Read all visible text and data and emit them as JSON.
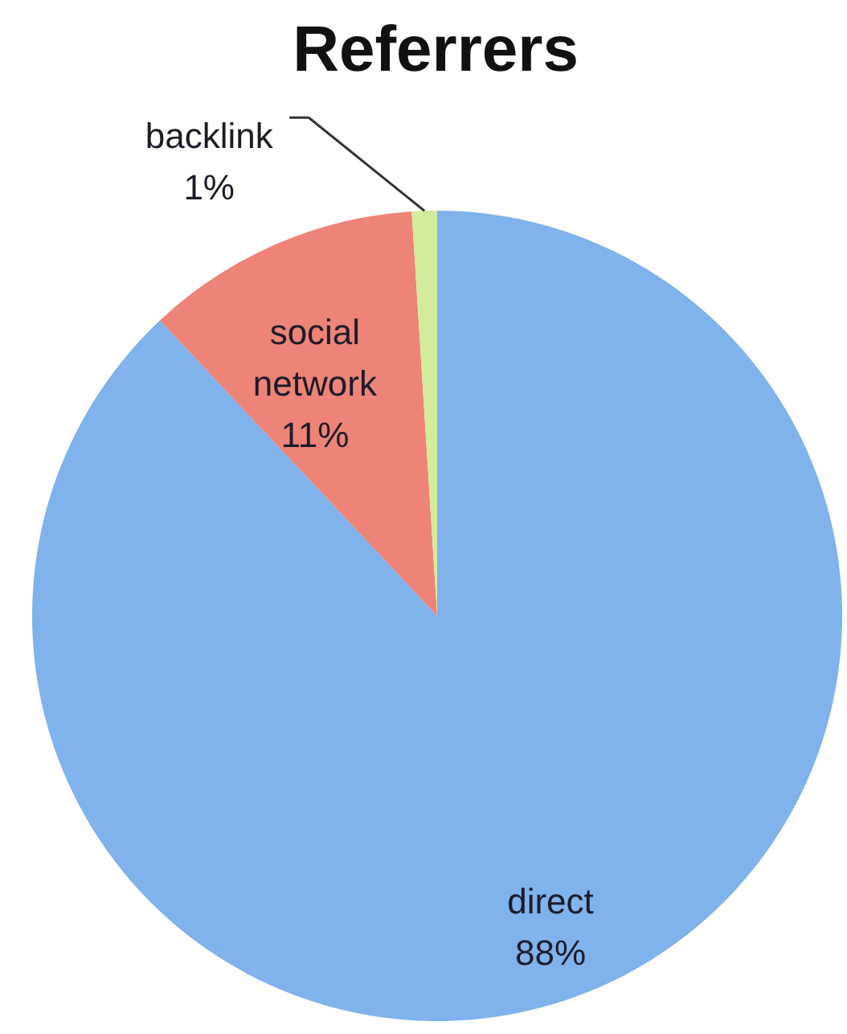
{
  "chart_data": {
    "type": "pie",
    "title": "Referrers",
    "categories": [
      "direct",
      "social network",
      "backlink"
    ],
    "values": [
      88,
      11,
      1
    ],
    "colors": [
      "#80b2ec",
      "#ee8377",
      "#d3eb9c"
    ],
    "value_labels": [
      "88%",
      "11%",
      "1%"
    ]
  }
}
